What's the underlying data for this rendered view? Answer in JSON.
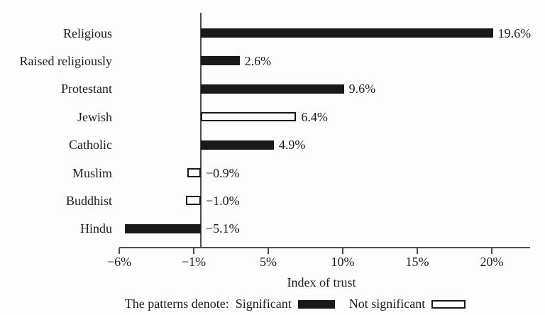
{
  "chart_data": {
    "type": "bar",
    "orientation": "horizontal",
    "title": "",
    "xlabel": "Index of trust",
    "ylabel": "",
    "grid": false,
    "categories": [
      "Religious",
      "Raised religiously",
      "Protestant",
      "Jewish",
      "Catholic",
      "Muslim",
      "Buddhist",
      "Hindu"
    ],
    "values": [
      19.6,
      2.6,
      9.6,
      6.4,
      4.9,
      -0.9,
      -1.0,
      -5.1
    ],
    "value_labels": [
      "19.6%",
      "2.6%",
      "9.6%",
      "6.4%",
      "4.9%",
      "−0.9%",
      "−1.0%",
      "−5.1%"
    ],
    "significant": [
      true,
      true,
      true,
      false,
      true,
      false,
      false,
      true
    ],
    "x_tick_values": [
      -6,
      -1,
      5,
      10,
      15,
      20
    ],
    "x_tick_labels": [
      "−6%",
      "−1%",
      "5%",
      "10%",
      "15%",
      "20%"
    ],
    "xlim": [
      -6,
      22.5
    ],
    "legend": {
      "position": "bottom",
      "prefix": "The patterns denote:",
      "significant": "Significant",
      "not_significant": "Not significant"
    },
    "colors": {
      "significant_fill": "#191919",
      "not_significant_fill": "#ffffff",
      "bar_border": "#191919",
      "axis": "#4d4d4d",
      "text": "#1c1c1c",
      "background": "#fdfdfd"
    }
  }
}
